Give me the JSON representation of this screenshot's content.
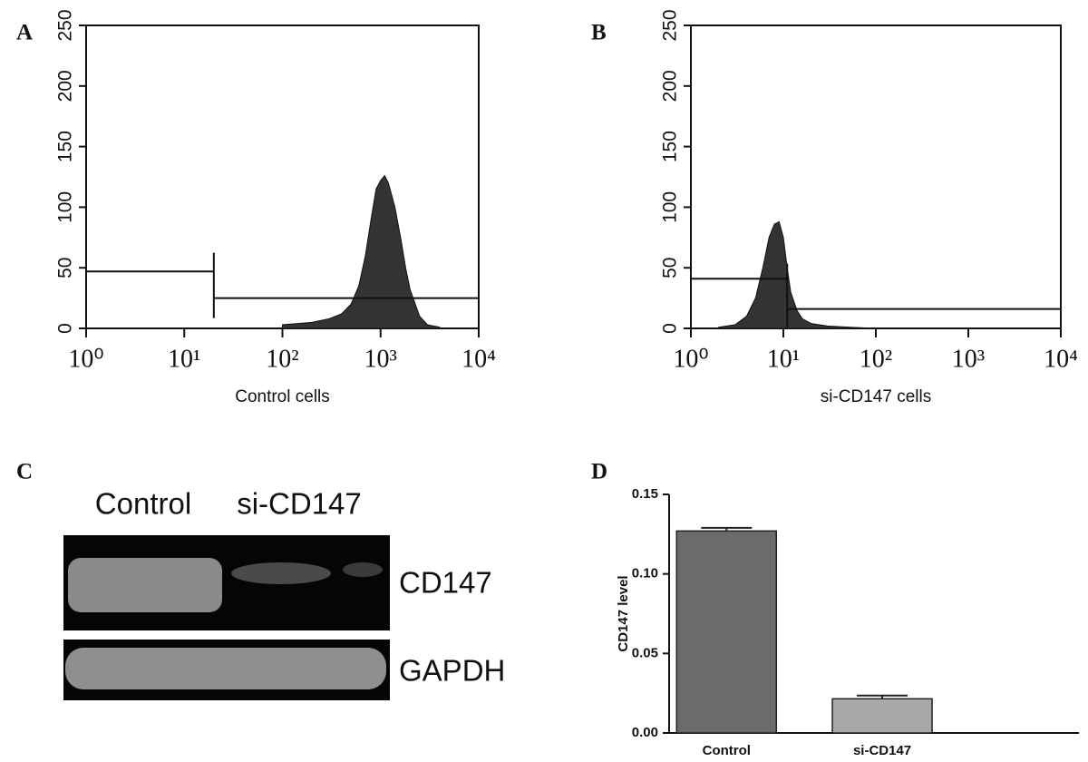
{
  "chart_data": [
    {
      "type": "area",
      "panel_label": "A",
      "xlabel": "Control cells",
      "xscale": "log",
      "xlim": [
        1,
        10000
      ],
      "xticks": [
        {
          "value": 1,
          "label": "10⁰"
        },
        {
          "value": 10,
          "label": "10¹"
        },
        {
          "value": 100,
          "label": "10²"
        },
        {
          "value": 1000,
          "label": "10³"
        },
        {
          "value": 10000,
          "label": "10⁴"
        }
      ],
      "ylim": [
        0,
        250
      ],
      "yticks": [
        0,
        50,
        100,
        150,
        200,
        250
      ],
      "color": "#333333",
      "x": [
        100,
        200,
        300,
        400,
        500,
        600,
        700,
        800,
        900,
        1000,
        1100,
        1200,
        1400,
        1600,
        1800,
        2000,
        2500,
        3000,
        4000
      ],
      "values": [
        3,
        5,
        8,
        12,
        20,
        35,
        60,
        90,
        115,
        122,
        126,
        120,
        100,
        75,
        50,
        32,
        10,
        3,
        1
      ],
      "gates": [
        {
          "x": [
            1,
            20
          ],
          "y": 47
        },
        {
          "x": [
            20,
            10000
          ],
          "y": 25
        }
      ]
    },
    {
      "type": "area",
      "panel_label": "B",
      "xlabel": "si-CD147 cells",
      "xscale": "log",
      "xlim": [
        1,
        10000
      ],
      "xticks": [
        {
          "value": 1,
          "label": "10⁰"
        },
        {
          "value": 10,
          "label": "10¹"
        },
        {
          "value": 100,
          "label": "10²"
        },
        {
          "value": 1000,
          "label": "10³"
        },
        {
          "value": 10000,
          "label": "10⁴"
        }
      ],
      "ylim": [
        0,
        250
      ],
      "yticks": [
        0,
        50,
        100,
        150,
        200,
        250
      ],
      "color": "#333333",
      "x": [
        2,
        3,
        4,
        5,
        6,
        7,
        8,
        9,
        10,
        11,
        12,
        14,
        16,
        20,
        30,
        50,
        100
      ],
      "values": [
        1,
        3,
        10,
        25,
        50,
        75,
        86,
        88,
        75,
        50,
        30,
        15,
        8,
        4,
        2,
        1,
        0
      ],
      "gates": [
        {
          "x": [
            1,
            11
          ],
          "y": 41
        },
        {
          "x": [
            11,
            10000
          ],
          "y": 16
        }
      ]
    },
    {
      "type": "blot",
      "panel_label": "C",
      "lanes": [
        "Control",
        "si-CD147"
      ],
      "bands": [
        "CD147",
        "GAPDH"
      ]
    },
    {
      "type": "bar",
      "panel_label": "D",
      "ylabel": "CD147 level",
      "categories": [
        "Control",
        "si-CD147"
      ],
      "values": [
        0.127,
        0.0215
      ],
      "errors": [
        0.002,
        0.002
      ],
      "colors": [
        "#6b6b6b",
        "#a9a9a9"
      ],
      "ylim": [
        0,
        0.15
      ],
      "yticks": [
        {
          "value": 0,
          "label": "0.00"
        },
        {
          "value": 0.05,
          "label": "0.05"
        },
        {
          "value": 0.1,
          "label": "0.10"
        },
        {
          "value": 0.15,
          "label": "0.15"
        }
      ]
    }
  ]
}
